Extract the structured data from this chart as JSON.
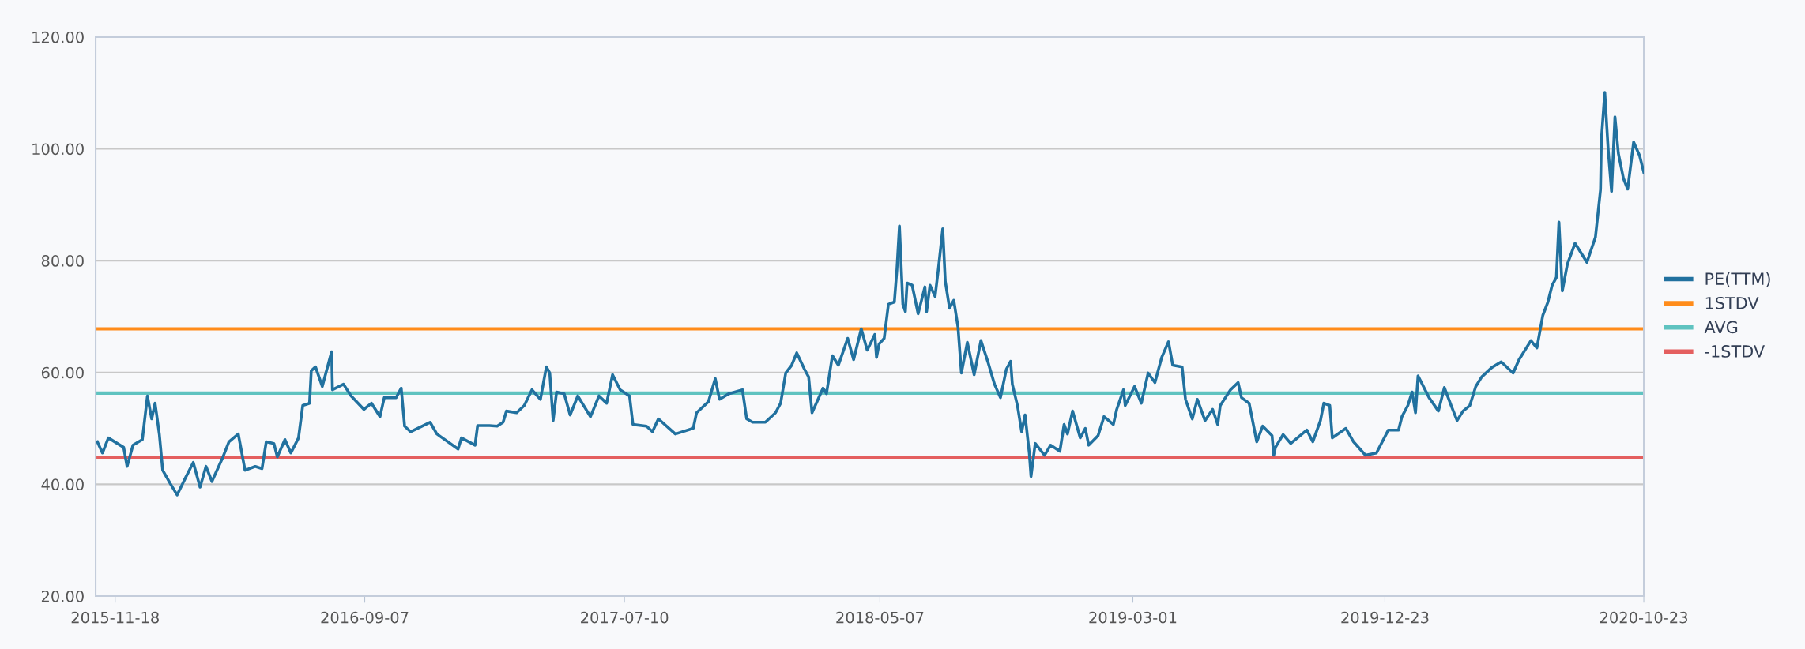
{
  "chart_data": {
    "type": "line",
    "x": [
      "2015-10-28",
      "2015-11-03",
      "2015-11-10",
      "2015-11-28",
      "2015-12-02",
      "2015-12-09",
      "2015-12-20",
      "2015-12-26",
      "2015-12-31",
      "2016-01-04",
      "2016-01-09",
      "2016-01-13",
      "2016-01-22",
      "2016-01-30",
      "2016-02-09",
      "2016-02-18",
      "2016-02-26",
      "2016-03-04",
      "2016-03-11",
      "2016-03-24",
      "2016-03-31",
      "2016-04-11",
      "2016-04-19",
      "2016-05-01",
      "2016-05-09",
      "2016-05-14",
      "2016-05-23",
      "2016-05-27",
      "2016-06-05",
      "2016-06-12",
      "2016-06-21",
      "2016-06-26",
      "2016-07-04",
      "2016-07-06",
      "2016-07-11",
      "2016-07-19",
      "2016-07-30",
      "2016-07-31",
      "2016-08-13",
      "2016-08-22",
      "2016-09-06",
      "2016-09-15",
      "2016-09-25",
      "2016-09-30",
      "2016-10-14",
      "2016-10-20",
      "2016-10-24",
      "2016-10-31",
      "2016-11-23",
      "2016-12-01",
      "2016-12-26",
      "2016-12-30",
      "2017-01-15",
      "2017-01-18",
      "2017-01-24",
      "2017-02-01",
      "2017-02-10",
      "2017-02-17",
      "2017-02-21",
      "2017-03-05",
      "2017-03-14",
      "2017-03-23",
      "2017-04-02",
      "2017-04-09",
      "2017-04-13",
      "2017-04-17",
      "2017-04-21",
      "2017-04-30",
      "2017-05-07",
      "2017-05-16",
      "2017-05-31",
      "2017-06-10",
      "2017-06-19",
      "2017-06-26",
      "2017-07-05",
      "2017-07-16",
      "2017-07-20",
      "2017-08-05",
      "2017-08-12",
      "2017-08-19",
      "2017-09-08",
      "2017-09-29",
      "2017-10-03",
      "2017-10-17",
      "2017-10-25",
      "2017-10-30",
      "2017-11-10",
      "2017-11-26",
      "2017-12-01",
      "2017-12-08",
      "2017-12-23",
      "2018-01-04",
      "2018-01-10",
      "2018-01-16",
      "2018-01-23",
      "2018-01-29",
      "2018-02-07",
      "2018-02-12",
      "2018-02-16",
      "2018-03-01",
      "2018-03-05",
      "2018-03-12",
      "2018-03-19",
      "2018-03-30",
      "2018-04-06",
      "2018-04-15",
      "2018-04-22",
      "2018-05-01",
      "2018-05-03",
      "2018-05-06",
      "2018-05-12",
      "2018-05-17",
      "2018-05-24",
      "2018-05-27",
      "2018-05-30",
      "2018-06-03",
      "2018-06-06",
      "2018-06-08",
      "2018-06-14",
      "2018-06-21",
      "2018-06-29",
      "2018-07-01",
      "2018-07-05",
      "2018-07-11",
      "2018-07-15",
      "2018-07-20",
      "2018-07-23",
      "2018-07-28",
      "2018-08-02",
      "2018-08-07",
      "2018-08-11",
      "2018-08-18",
      "2018-08-26",
      "2018-09-03",
      "2018-09-11",
      "2018-09-19",
      "2018-09-26",
      "2018-10-03",
      "2018-10-08",
      "2018-10-10",
      "2018-10-16",
      "2018-10-21",
      "2018-10-25",
      "2018-10-30",
      "2018-11-01",
      "2018-11-06",
      "2018-11-17",
      "2018-11-24",
      "2018-12-05",
      "2018-12-10",
      "2018-12-14",
      "2018-12-20",
      "2018-12-29",
      "2019-01-04",
      "2019-01-08",
      "2019-01-19",
      "2019-01-26",
      "2019-02-06",
      "2019-02-10",
      "2019-02-18",
      "2019-02-20",
      "2019-03-03",
      "2019-03-11",
      "2019-03-19",
      "2019-03-27",
      "2019-04-04",
      "2019-04-12",
      "2019-04-17",
      "2019-04-28",
      "2019-05-02",
      "2019-05-10",
      "2019-05-16",
      "2019-05-25",
      "2019-06-03",
      "2019-06-09",
      "2019-06-12",
      "2019-06-24",
      "2019-07-03",
      "2019-07-07",
      "2019-07-16",
      "2019-07-25",
      "2019-08-01",
      "2019-08-12",
      "2019-08-14",
      "2019-08-16",
      "2019-08-25",
      "2019-09-03",
      "2019-09-22",
      "2019-09-29",
      "2019-10-08",
      "2019-10-12",
      "2019-10-19",
      "2019-10-22",
      "2019-11-07",
      "2019-11-16",
      "2019-11-30",
      "2019-12-13",
      "2019-12-27",
      "2020-01-08",
      "2020-01-12",
      "2020-01-19",
      "2020-01-24",
      "2020-01-28",
      "2020-01-31",
      "2020-02-13",
      "2020-02-24",
      "2020-03-02",
      "2020-03-10",
      "2020-03-17",
      "2020-03-24",
      "2020-04-01",
      "2020-04-08",
      "2020-04-15",
      "2020-04-27",
      "2020-05-08",
      "2020-05-22",
      "2020-05-29",
      "2020-06-12",
      "2020-06-19",
      "2020-06-26",
      "2020-07-02",
      "2020-07-07",
      "2020-07-12",
      "2020-07-15",
      "2020-07-19",
      "2020-07-25",
      "2020-08-03",
      "2020-08-10",
      "2020-08-17",
      "2020-08-27",
      "2020-09-02",
      "2020-09-03",
      "2020-09-07",
      "2020-09-11",
      "2020-09-15",
      "2020-09-19",
      "2020-09-23",
      "2020-09-29",
      "2020-10-04",
      "2020-10-11",
      "2020-10-18",
      "2020-10-23"
    ],
    "series": [
      {
        "name": "PE(TTM)",
        "color": "#21719f",
        "values": [
          47.6,
          45.6,
          48.3,
          46.6,
          43.2,
          47.0,
          48.0,
          55.8,
          51.7,
          54.5,
          49.0,
          42.5,
          40.1,
          38.1,
          41.2,
          43.9,
          39.5,
          43.2,
          40.5,
          44.9,
          47.6,
          49.0,
          42.5,
          43.2,
          42.8,
          47.6,
          47.3,
          44.9,
          48.0,
          45.6,
          48.3,
          54.1,
          54.5,
          60.3,
          61.0,
          57.5,
          63.7,
          56.9,
          57.9,
          55.8,
          53.4,
          54.5,
          52.1,
          55.5,
          55.5,
          57.2,
          50.4,
          49.4,
          51.1,
          49.0,
          46.3,
          48.3,
          47.0,
          50.5,
          50.5,
          50.5,
          50.4,
          51.1,
          53.1,
          52.8,
          54.1,
          56.9,
          55.2,
          61.0,
          59.9,
          51.4,
          56.5,
          56.2,
          52.4,
          55.8,
          52.1,
          55.8,
          54.5,
          59.6,
          56.9,
          55.8,
          50.7,
          50.4,
          49.4,
          51.7,
          49.0,
          50.0,
          52.8,
          54.8,
          58.9,
          55.2,
          56.2,
          56.9,
          51.7,
          51.1,
          51.1,
          52.8,
          54.5,
          59.9,
          61.3,
          63.5,
          60.6,
          59.2,
          52.8,
          57.2,
          56.2,
          63.0,
          61.3,
          66.1,
          62.3,
          67.8,
          64.0,
          66.8,
          62.7,
          65.1,
          66.1,
          72.2,
          72.6,
          78.4,
          86.2,
          72.2,
          70.9,
          76.0,
          75.6,
          70.5,
          75.3,
          70.9,
          75.6,
          73.6,
          78.7,
          85.7,
          76.3,
          71.5,
          72.9,
          68.1,
          59.9,
          65.4,
          59.6,
          65.7,
          62.0,
          57.9,
          55.5,
          60.6,
          62.0,
          57.9,
          54.1,
          49.4,
          52.4,
          45.6,
          41.4,
          47.3,
          45.2,
          47.0,
          45.9,
          50.7,
          49.0,
          53.1,
          48.3,
          50.0,
          47.0,
          48.7,
          52.1,
          50.7,
          53.4,
          56.9,
          54.1,
          57.5,
          54.5,
          59.9,
          58.2,
          62.7,
          65.5,
          61.3,
          61.0,
          55.2,
          51.7,
          55.2,
          51.4,
          53.4,
          50.7,
          54.1,
          56.9,
          58.2,
          55.5,
          54.5,
          47.6,
          50.4,
          48.7,
          45.2,
          46.6,
          48.9,
          47.3,
          49.7,
          47.6,
          51.4,
          54.5,
          54.1,
          48.3,
          50.0,
          47.6,
          45.2,
          45.6,
          49.7,
          49.7,
          52.1,
          54.1,
          56.5,
          52.8,
          59.4,
          55.5,
          53.1,
          57.3,
          54.1,
          51.4,
          53.1,
          54.1,
          57.5,
          59.2,
          60.9,
          61.9,
          59.9,
          62.3,
          65.7,
          64.4,
          70.2,
          72.6,
          75.6,
          77.0,
          86.9,
          74.6,
          79.4,
          83.1,
          81.4,
          79.7,
          84.2,
          92.7,
          101.6,
          110.1,
          99.9,
          92.4,
          105.7,
          99.2,
          94.7,
          92.8,
          101.2,
          98.8,
          95.8
        ]
      }
    ],
    "ref_lines": [
      {
        "axis": "y",
        "value": 67.8,
        "label": "1STDV",
        "color": "#ff8c1a"
      },
      {
        "axis": "y",
        "value": 56.3,
        "label": "AVG",
        "color": "#5fc3c0"
      },
      {
        "axis": "y",
        "value": 44.85,
        "label": "-1STDV",
        "color": "#e45f5f"
      }
    ],
    "xlim": [
      "2015-10-26",
      "2020-10-23"
    ],
    "xticks": [
      {
        "value": "2015-11-18",
        "label": "2015-11-18"
      },
      {
        "value": "2016-09-07",
        "label": "2016-09-07"
      },
      {
        "value": "2017-07-10",
        "label": "2017-07-10"
      },
      {
        "value": "2018-05-07",
        "label": "2018-05-07"
      },
      {
        "value": "2019-03-01",
        "label": "2019-03-01"
      },
      {
        "value": "2019-12-23",
        "label": "2019-12-23"
      },
      {
        "value": "2020-10-23",
        "label": "2020-10-23"
      }
    ],
    "ylim": [
      20,
      120
    ],
    "yticks": [
      {
        "value": 20,
        "label": "20.00"
      },
      {
        "value": 40,
        "label": "40.00"
      },
      {
        "value": 60,
        "label": "60.00"
      },
      {
        "value": 80,
        "label": "80.00"
      },
      {
        "value": 100,
        "label": "100.00"
      },
      {
        "value": 120,
        "label": "120.00"
      }
    ],
    "grid": "y",
    "legend": "right",
    "marker": "none",
    "line_style": "solid"
  }
}
